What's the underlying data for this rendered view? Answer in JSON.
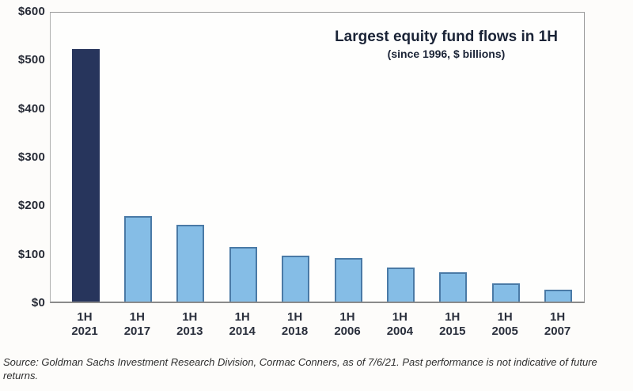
{
  "chart_data": {
    "type": "bar",
    "title": "Largest equity fund flows in 1H",
    "subtitle": "(since 1996, $ billions)",
    "categories": [
      {
        "half": "1H",
        "year": "2021"
      },
      {
        "half": "1H",
        "year": "2017"
      },
      {
        "half": "1H",
        "year": "2013"
      },
      {
        "half": "1H",
        "year": "2014"
      },
      {
        "half": "1H",
        "year": "2018"
      },
      {
        "half": "1H",
        "year": "2006"
      },
      {
        "half": "1H",
        "year": "2004"
      },
      {
        "half": "1H",
        "year": "2015"
      },
      {
        "half": "1H",
        "year": "2005"
      },
      {
        "half": "1H",
        "year": "2007"
      }
    ],
    "values": [
      520,
      176,
      158,
      113,
      94,
      89,
      70,
      60,
      37,
      25
    ],
    "xlabel": "",
    "ylabel": "",
    "ylim": [
      0,
      600
    ],
    "y_ticks": [
      {
        "value": 600,
        "label": "$600"
      },
      {
        "value": 500,
        "label": "$500"
      },
      {
        "value": 400,
        "label": "$400"
      },
      {
        "value": 300,
        "label": "$300"
      },
      {
        "value": 200,
        "label": "$200"
      },
      {
        "value": 100,
        "label": "$100"
      },
      {
        "value": 0,
        "label": "$0"
      }
    ],
    "grid": false,
    "legend": false,
    "highlight_index": 0,
    "colors": {
      "highlight_fill": "#27355c",
      "bar_fill": "#85bde6",
      "bar_border": "#4a7aa6"
    }
  },
  "source_note": "Source: Goldman Sachs Investment Research Division, Cormac Conners, as of 7/6/21. Past performance is not indicative of future returns."
}
